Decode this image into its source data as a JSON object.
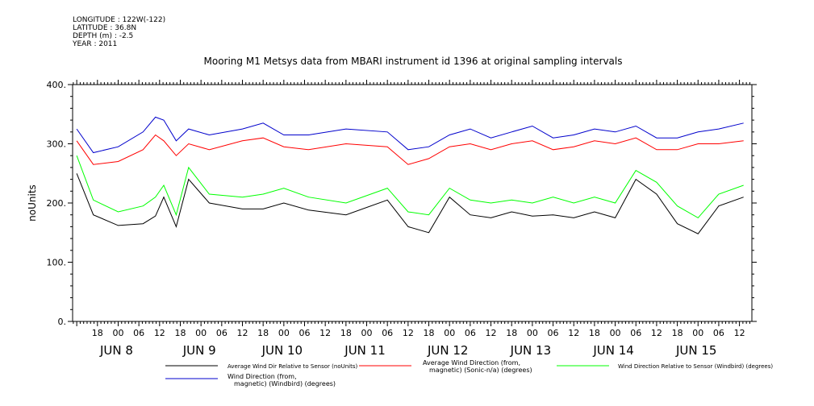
{
  "header": {
    "lines": [
      "LONGITUDE : 122W(-122)",
      "LATITUDE : 36.8N",
      "DEPTH (m) : -2.5",
      "YEAR : 2011"
    ]
  },
  "chart_data": {
    "type": "line",
    "title": "Mooring M1 Metsys data from MBARI instrument id 1396 at original sampling intervals",
    "ylabel": "noUnits",
    "xlabel": "",
    "ylim": [
      0,
      400
    ],
    "y_ticks": [
      "0.",
      "100.",
      "200.",
      "300.",
      "400."
    ],
    "xlim_days": [
      7.45,
      15.65
    ],
    "hour_ticks": [
      "18",
      "00",
      "06",
      "12",
      "18",
      "00",
      "06",
      "12",
      "18",
      "00",
      "06",
      "12",
      "18",
      "00",
      "06",
      "12",
      "18",
      "00",
      "06",
      "12",
      "18",
      "00",
      "06",
      "12",
      "18",
      "00",
      "06",
      "12",
      "18",
      "00",
      "06",
      "12"
    ],
    "day_labels": [
      "JUN  8",
      "JUN  9",
      "JUN 10",
      "JUN 11",
      "JUN 12",
      "JUN 13",
      "JUN 14",
      "JUN 15"
    ],
    "grid": false,
    "x": [
      7.5,
      7.7,
      8.0,
      8.3,
      8.45,
      8.55,
      8.7,
      8.85,
      9.1,
      9.5,
      9.75,
      10.0,
      10.3,
      10.75,
      11.25,
      11.5,
      11.75,
      12.0,
      12.25,
      12.5,
      12.75,
      13.0,
      13.25,
      13.5,
      13.75,
      14.0,
      14.25,
      14.5,
      14.75,
      15.0,
      15.25,
      15.55
    ],
    "series": [
      {
        "name": "Average Wind Dir Relative to Sensor (noUnits)",
        "color": "#000000",
        "values": [
          250,
          180,
          162,
          165,
          178,
          210,
          160,
          240,
          200,
          190,
          190,
          200,
          188,
          180,
          205,
          160,
          150,
          210,
          180,
          175,
          185,
          178,
          180,
          175,
          185,
          175,
          240,
          215,
          165,
          148,
          195,
          210
        ]
      },
      {
        "name": "Average Wind Direction (from, magnetic) (Sonic-n/a) (degrees)",
        "color": "#ff0000",
        "values": [
          305,
          265,
          270,
          290,
          315,
          305,
          280,
          300,
          290,
          305,
          310,
          295,
          290,
          300,
          295,
          265,
          275,
          295,
          300,
          290,
          300,
          305,
          290,
          295,
          305,
          300,
          310,
          290,
          290,
          300,
          300,
          305
        ]
      },
      {
        "name": "Wind Direction Relative to Sensor (Windbird) (degrees)",
        "color": "#00ff00",
        "values": [
          280,
          205,
          185,
          195,
          210,
          230,
          180,
          260,
          215,
          210,
          215,
          225,
          210,
          200,
          225,
          185,
          180,
          225,
          205,
          200,
          205,
          200,
          210,
          200,
          210,
          200,
          255,
          235,
          195,
          175,
          215,
          230
        ]
      },
      {
        "name": "Wind Direction (from, magnetic) (Windbird) (degrees)",
        "color": "#0000cc",
        "values": [
          325,
          285,
          295,
          320,
          345,
          340,
          305,
          325,
          315,
          325,
          335,
          315,
          315,
          325,
          320,
          290,
          295,
          315,
          325,
          310,
          320,
          330,
          310,
          315,
          325,
          320,
          330,
          310,
          310,
          320,
          325,
          335
        ]
      }
    ]
  }
}
